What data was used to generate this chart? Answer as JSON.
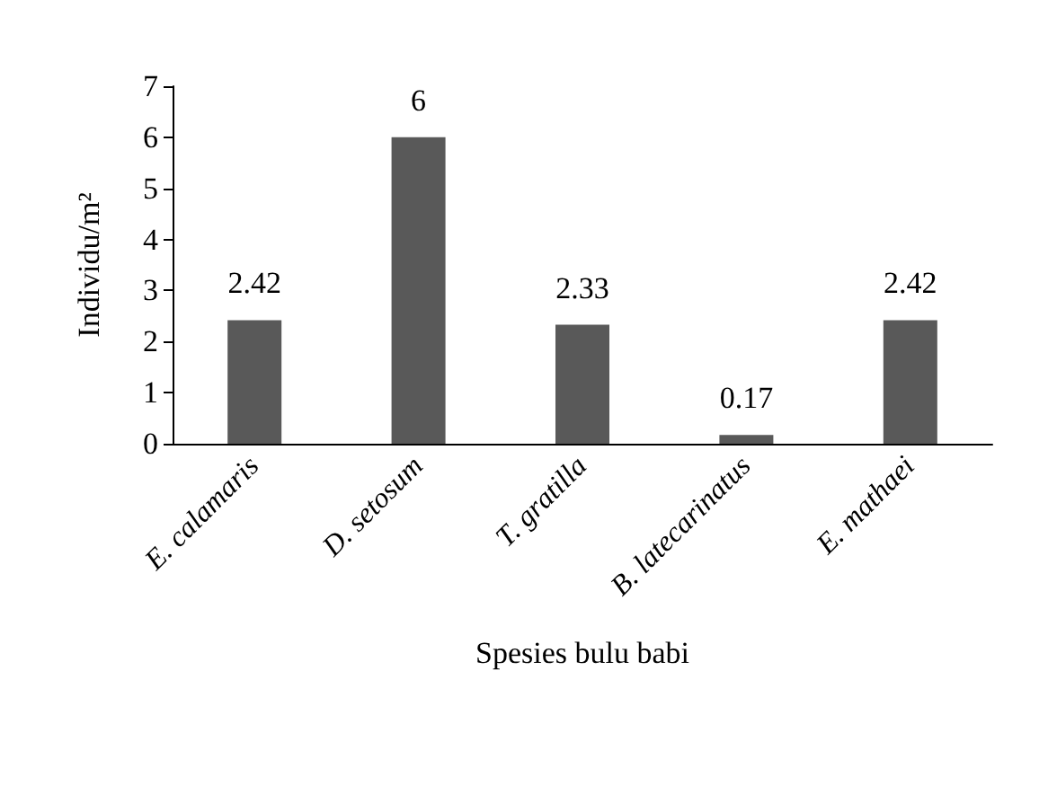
{
  "chart_data": {
    "type": "bar",
    "xlabel": "Spesies bulu babi",
    "ylabel": "Individu/m²",
    "categories": [
      "E. calamaris",
      "D. setosum",
      "T. gratilla",
      "B. latecarinatus",
      "E. mathaei"
    ],
    "values": [
      2.42,
      6,
      2.33,
      0.17,
      2.42
    ],
    "color": "#595959",
    "ylim": [
      0,
      7
    ],
    "yticks": [
      0,
      1,
      2,
      3,
      4,
      5,
      6,
      7
    ],
    "grid": false,
    "data_labels": true
  }
}
